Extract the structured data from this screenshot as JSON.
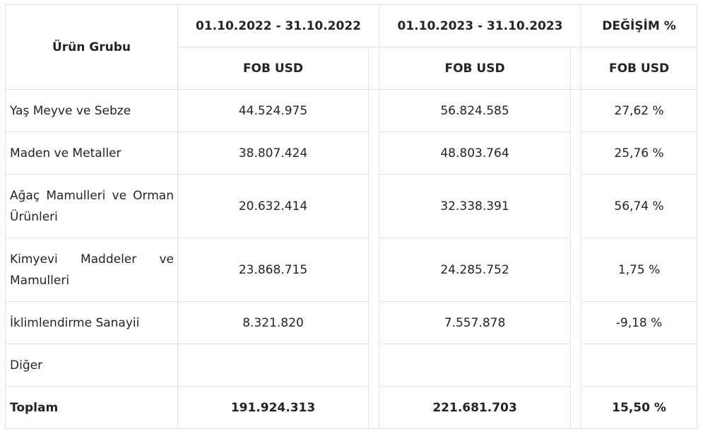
{
  "table": {
    "header": {
      "product_group": "Ürün Grubu",
      "period_2022": "01.10.2022 - 31.10.2022",
      "period_2023": "01.10.2023 - 31.10.2023",
      "change": "DEĞİŞİM %",
      "unit_2022": "FOB USD",
      "unit_2023": "FOB USD",
      "unit_change": "FOB USD"
    },
    "rows": [
      {
        "product": "Yaş Meyve ve Sebze",
        "v2022": "44.524.975",
        "v2023": "56.824.585",
        "change": "27,62 %"
      },
      {
        "product": "Maden ve Metaller",
        "v2022": "38.807.424",
        "v2023": "48.803.764",
        "change": "25,76 %"
      },
      {
        "product": "Ağaç Mamulleri ve Orman Ürünleri",
        "v2022": "20.632.414",
        "v2023": "32.338.391",
        "change": "56,74 %"
      },
      {
        "product": "Kimyevi Maddeler ve Mamulleri",
        "v2022": "23.868.715",
        "v2023": "24.285.752",
        "change": "1,75 %"
      },
      {
        "product": "İklimlendirme Sanayii",
        "v2022": "8.321.820",
        "v2023": "7.557.878",
        "change": "-9,18 %"
      },
      {
        "product": "Diğer",
        "v2022": "",
        "v2023": "",
        "change": ""
      }
    ],
    "total": {
      "label": "Toplam",
      "v2022": "191.924.313",
      "v2023": "221.681.703",
      "change": "15,50 %"
    }
  }
}
